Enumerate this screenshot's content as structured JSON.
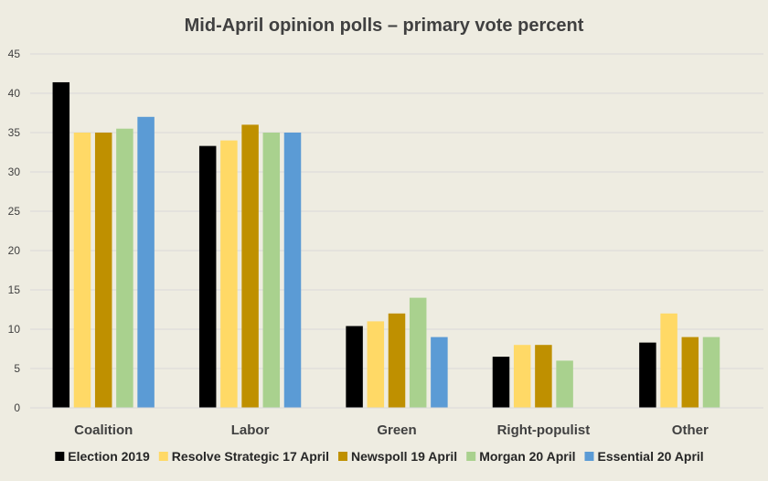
{
  "chart_data": {
    "type": "bar",
    "title": "Mid-April opinion polls  – primary vote percent",
    "xlabel": "",
    "ylabel": "",
    "ylim": [
      0,
      45
    ],
    "yticks": [
      "0",
      "5",
      "10",
      "15",
      "20",
      "25",
      "30",
      "35",
      "40",
      "45"
    ],
    "grid": true,
    "legend_position": "bottom",
    "categories": [
      "Coalition",
      "Labor",
      "Green",
      "Right-populist",
      "Other"
    ],
    "series": [
      {
        "name": "Election 2019",
        "color": "#000000",
        "values": [
          41.4,
          33.3,
          10.4,
          6.5,
          8.3
        ]
      },
      {
        "name": "Resolve Strategic 17 April",
        "color": "#ffd966",
        "values": [
          35,
          34,
          11,
          8,
          12
        ]
      },
      {
        "name": "Newspoll 19 April",
        "color": "#bf9000",
        "values": [
          35,
          36,
          12,
          8,
          9
        ]
      },
      {
        "name": "Morgan 20 April",
        "color": "#a9d18e",
        "values": [
          35.5,
          35,
          14,
          6,
          9
        ]
      },
      {
        "name": "Essential 20 April",
        "color": "#5b9bd5",
        "values": [
          37,
          35,
          9,
          null,
          null
        ]
      }
    ]
  }
}
